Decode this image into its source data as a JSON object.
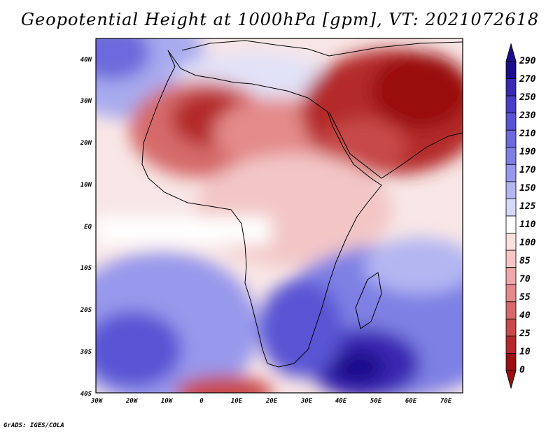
{
  "title": "Geopotential Height at 1000hPa [gpm], VT: 2021072618",
  "credit": "GrADS: IGES/COLA",
  "map": {
    "variable": "Geopotential Height",
    "level": "1000hPa",
    "units": "gpm",
    "valid_time": "2021072618",
    "lat_ticks": [
      "40N",
      "30N",
      "20N",
      "10N",
      "EQ",
      "10S",
      "20S",
      "30S",
      "40S"
    ],
    "lon_ticks": [
      "30W",
      "20W",
      "10W",
      "0",
      "10E",
      "20E",
      "30E",
      "40E",
      "50E",
      "60E",
      "70E"
    ]
  },
  "colorbar": {
    "levels": [
      "290",
      "270",
      "250",
      "230",
      "210",
      "190",
      "170",
      "150",
      "125",
      "110",
      "100",
      "85",
      "70",
      "55",
      "40",
      "25",
      "10",
      "0"
    ],
    "colors": [
      "#1c0e8c",
      "#3a28b2",
      "#4a3ec6",
      "#5a54d4",
      "#6c6adc",
      "#7e80e4",
      "#9898ec",
      "#b4b6f2",
      "#d6d8f8",
      "#ffffff",
      "#fbe0e0",
      "#f6c6c6",
      "#eea8a8",
      "#e48a8a",
      "#d66a6a",
      "#c84a4a",
      "#b42a2a",
      "#9a1010"
    ]
  }
}
